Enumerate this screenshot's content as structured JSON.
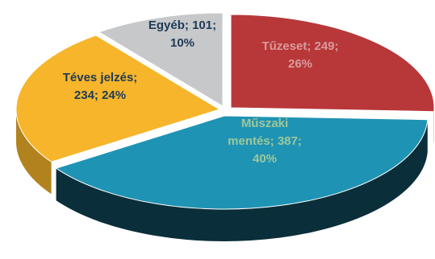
{
  "chart_data": {
    "type": "pie",
    "style": "3d-exploded-tilted",
    "categories": [
      "Tűzeset",
      "Műszaki mentés",
      "Téves jelzés",
      "Egyéb"
    ],
    "values": [
      249,
      387,
      234,
      101
    ],
    "percents": [
      26,
      40,
      24,
      10
    ],
    "colors": [
      "#b8383a",
      "#1f93b4",
      "#f6b52a",
      "#c6c8ca"
    ],
    "labels": [
      [
        "Tűzeset; 249;",
        "26%"
      ],
      [
        "Műszaki",
        "mentés; 387;",
        "40%"
      ],
      [
        "Téves jelzés;",
        "234; 24%"
      ],
      [
        "Egyéb; 101;",
        "10%"
      ]
    ],
    "label_colors": [
      "#d99a9b",
      "#9ec79a",
      "#1f3b57",
      "#1f3b57"
    ],
    "legend": "none"
  }
}
